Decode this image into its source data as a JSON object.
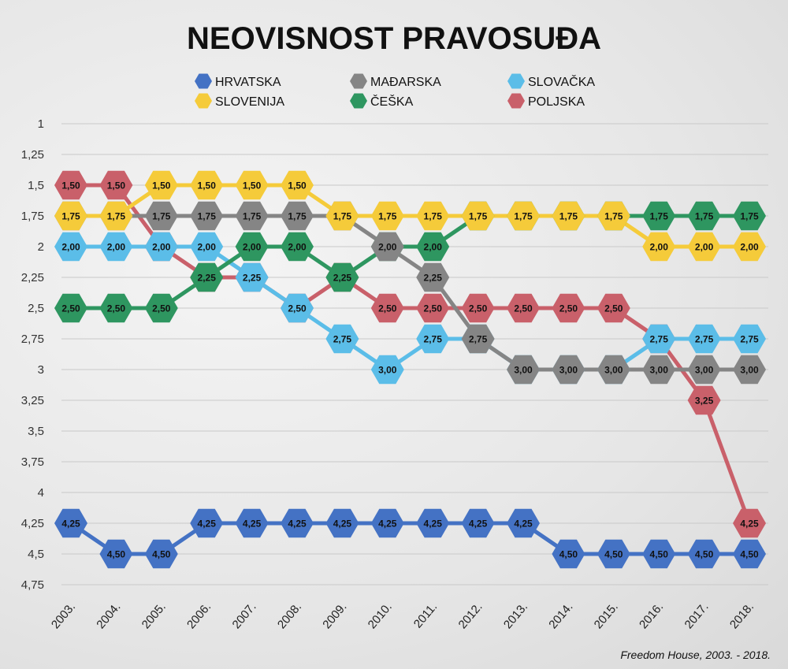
{
  "chart_data": {
    "type": "line",
    "title": "NEOVISNOST PRAVOSUĐA",
    "source": "Freedom House, 2003. - 2018.",
    "x": [
      "2003.",
      "2004.",
      "2005.",
      "2006.",
      "2007.",
      "2008.",
      "2009.",
      "2010.",
      "2011.",
      "2012.",
      "2013.",
      "2014.",
      "2015.",
      "2016.",
      "2017.",
      "2018."
    ],
    "y_ticks": [
      "1",
      "1,25",
      "1,5",
      "1,75",
      "2",
      "2,25",
      "2,5",
      "2,75",
      "3",
      "3,25",
      "3,5",
      "3,75",
      "4",
      "4,25",
      "4,5",
      "4,75"
    ],
    "ylim": [
      1,
      4.75
    ],
    "y_inverted": true,
    "grid": true,
    "legend_placement": "top",
    "series": [
      {
        "name": "HRVATSKA",
        "color": "#4472c4",
        "values": [
          4.25,
          4.5,
          4.5,
          4.25,
          4.25,
          4.25,
          4.25,
          4.25,
          4.25,
          4.25,
          4.25,
          4.5,
          4.5,
          4.5,
          4.5,
          4.5
        ]
      },
      {
        "name": "POLJSKA",
        "color": "#c9606a",
        "values": [
          1.5,
          1.5,
          2.0,
          2.25,
          2.25,
          2.5,
          2.25,
          2.5,
          2.5,
          2.5,
          2.5,
          2.5,
          2.5,
          2.75,
          3.25,
          4.25
        ]
      },
      {
        "name": "SLOVAČKA",
        "color": "#5bbde8",
        "values": [
          2.0,
          2.0,
          2.0,
          2.0,
          2.25,
          2.5,
          2.75,
          3.0,
          2.75,
          2.75,
          3.0,
          3.0,
          3.0,
          2.75,
          2.75,
          2.75
        ]
      },
      {
        "name": "ČEŠKA",
        "color": "#2e9660",
        "values": [
          2.5,
          2.5,
          2.5,
          2.25,
          2.0,
          2.0,
          2.25,
          2.0,
          2.0,
          1.75,
          1.75,
          1.75,
          1.75,
          1.75,
          1.75,
          1.75
        ]
      },
      {
        "name": "MAĐARSKA",
        "color": "#858585",
        "values": [
          1.75,
          1.75,
          1.75,
          1.75,
          1.75,
          1.75,
          1.75,
          2.0,
          2.25,
          2.75,
          3.0,
          3.0,
          3.0,
          3.0,
          3.0,
          3.0
        ]
      },
      {
        "name": "SLOVENIJA",
        "color": "#f5cb3a",
        "values": [
          1.75,
          1.75,
          1.5,
          1.5,
          1.5,
          1.5,
          1.75,
          1.75,
          1.75,
          1.75,
          1.75,
          1.75,
          1.75,
          2.0,
          2.0,
          2.0
        ]
      }
    ],
    "legend_order": [
      "HRVATSKA",
      "MAĐARSKA",
      "SLOVAČKA",
      "SLOVENIJA",
      "ČEŠKA",
      "POLJSKA"
    ]
  }
}
